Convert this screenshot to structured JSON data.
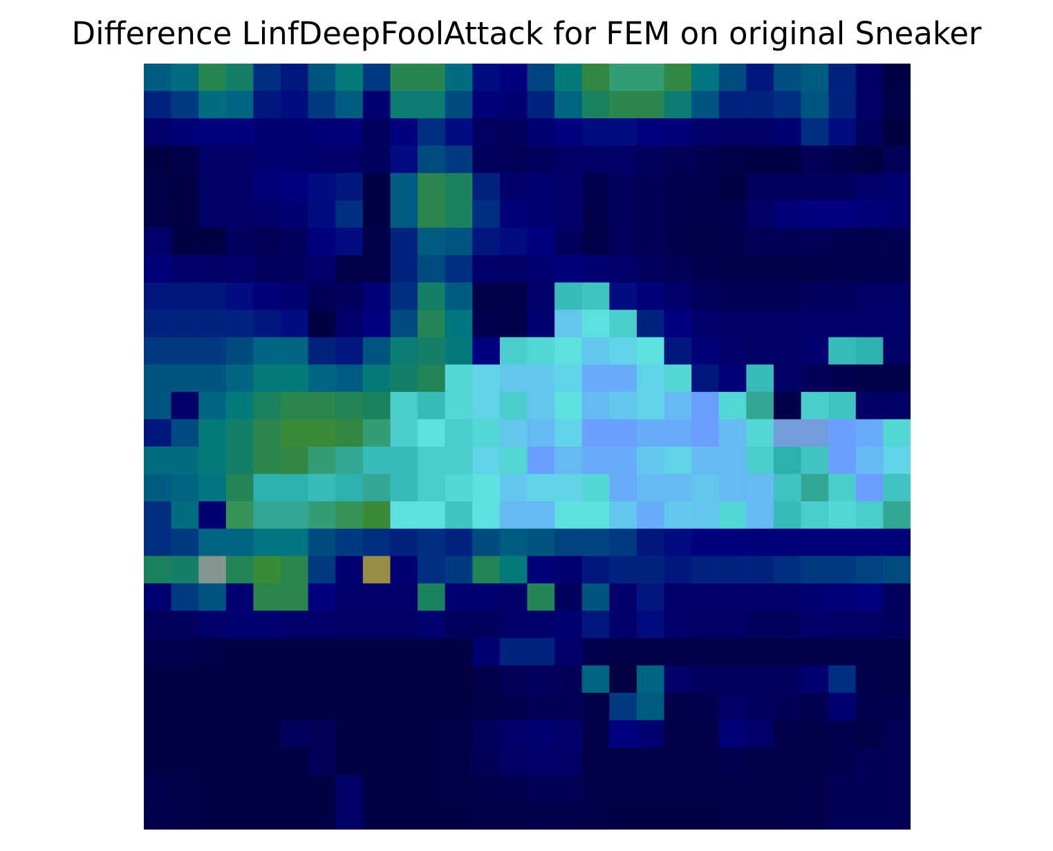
{
  "chart_data": {
    "type": "heatmap",
    "title": "Difference LinfDeepFoolAttack for FEM on original Sneaker",
    "rows": 28,
    "cols": 28,
    "axes_visible": false,
    "grid": false,
    "colorbar": false,
    "color_scale": [
      {
        "t": 0.0,
        "color": "#02003b"
      },
      {
        "t": 0.2,
        "color": "#000080"
      },
      {
        "t": 0.3,
        "color": "#003a80"
      },
      {
        "t": 0.45,
        "color": "#007a80"
      },
      {
        "t": 0.6,
        "color": "#3a8a3a"
      },
      {
        "t": 0.68,
        "color": "#2fb0b0"
      },
      {
        "t": 0.78,
        "color": "#5fe0e0"
      },
      {
        "t": 0.88,
        "color": "#6a9fff"
      },
      {
        "t": 1.0,
        "color": "#a08a20"
      }
    ],
    "z_note_range": [
      0,
      1
    ],
    "z": [
      [
        0.38,
        0.42,
        0.55,
        0.5,
        0.28,
        0.24,
        0.36,
        0.46,
        0.3,
        0.55,
        0.55,
        0.42,
        0.22,
        0.2,
        0.32,
        0.46,
        0.58,
        0.64,
        0.64,
        0.58,
        0.44,
        0.34,
        0.24,
        0.35,
        0.38,
        0.26,
        0.12,
        0.03
      ],
      [
        0.26,
        0.3,
        0.42,
        0.4,
        0.24,
        0.22,
        0.3,
        0.38,
        0.16,
        0.48,
        0.48,
        0.34,
        0.18,
        0.16,
        0.26,
        0.4,
        0.52,
        0.56,
        0.56,
        0.48,
        0.36,
        0.26,
        0.26,
        0.28,
        0.36,
        0.26,
        0.12,
        0.04
      ],
      [
        0.14,
        0.17,
        0.19,
        0.19,
        0.16,
        0.16,
        0.17,
        0.18,
        0.1,
        0.2,
        0.28,
        0.22,
        0.11,
        0.09,
        0.16,
        0.2,
        0.22,
        0.22,
        0.2,
        0.18,
        0.14,
        0.12,
        0.12,
        0.16,
        0.28,
        0.22,
        0.1,
        0.01
      ],
      [
        0.02,
        0.04,
        0.12,
        0.12,
        0.16,
        0.16,
        0.15,
        0.14,
        0.1,
        0.22,
        0.34,
        0.3,
        0.1,
        0.08,
        0.1,
        0.12,
        0.13,
        0.12,
        0.1,
        0.08,
        0.07,
        0.04,
        0.03,
        0.03,
        0.08,
        0.06,
        0.02,
        0.08
      ],
      [
        0.04,
        0.03,
        0.12,
        0.12,
        0.18,
        0.2,
        0.22,
        0.24,
        0.03,
        0.38,
        0.56,
        0.52,
        0.26,
        0.14,
        0.16,
        0.14,
        0.06,
        0.1,
        0.08,
        0.06,
        0.06,
        0.03,
        0.1,
        0.1,
        0.1,
        0.1,
        0.14,
        0.16
      ],
      [
        0.04,
        0.02,
        0.12,
        0.12,
        0.14,
        0.16,
        0.22,
        0.28,
        0.03,
        0.38,
        0.56,
        0.52,
        0.28,
        0.18,
        0.16,
        0.14,
        0.05,
        0.1,
        0.08,
        0.06,
        0.05,
        0.06,
        0.12,
        0.18,
        0.2,
        0.2,
        0.18,
        0.16
      ],
      [
        0.14,
        0.03,
        0.03,
        0.1,
        0.08,
        0.1,
        0.2,
        0.22,
        0.04,
        0.26,
        0.38,
        0.36,
        0.24,
        0.22,
        0.2,
        0.1,
        0.04,
        0.1,
        0.08,
        0.05,
        0.04,
        0.05,
        0.08,
        0.08,
        0.08,
        0.07,
        0.06,
        0.07
      ],
      [
        0.18,
        0.14,
        0.12,
        0.14,
        0.1,
        0.1,
        0.14,
        0.04,
        0.04,
        0.26,
        0.34,
        0.28,
        0.14,
        0.12,
        0.16,
        0.18,
        0.16,
        0.14,
        0.1,
        0.08,
        0.06,
        0.04,
        0.04,
        0.04,
        0.05,
        0.06,
        0.06,
        0.06
      ],
      [
        0.24,
        0.24,
        0.24,
        0.22,
        0.18,
        0.16,
        0.08,
        0.1,
        0.18,
        0.28,
        0.5,
        0.38,
        0.04,
        0.04,
        0.14,
        0.7,
        0.72,
        0.22,
        0.18,
        0.14,
        0.1,
        0.08,
        0.08,
        0.08,
        0.1,
        0.1,
        0.12,
        0.12
      ],
      [
        0.26,
        0.26,
        0.26,
        0.26,
        0.24,
        0.22,
        0.03,
        0.14,
        0.2,
        0.34,
        0.54,
        0.44,
        0.06,
        0.05,
        0.16,
        0.82,
        0.78,
        0.74,
        0.26,
        0.2,
        0.14,
        0.12,
        0.12,
        0.12,
        0.14,
        0.14,
        0.14,
        0.14
      ],
      [
        0.3,
        0.3,
        0.3,
        0.34,
        0.4,
        0.4,
        0.26,
        0.24,
        0.36,
        0.48,
        0.5,
        0.46,
        0.2,
        0.74,
        0.76,
        0.78,
        0.82,
        0.8,
        0.78,
        0.24,
        0.18,
        0.14,
        0.12,
        0.12,
        0.16,
        0.7,
        0.68,
        0.12
      ],
      [
        0.36,
        0.36,
        0.36,
        0.4,
        0.46,
        0.46,
        0.4,
        0.38,
        0.46,
        0.5,
        0.54,
        0.76,
        0.8,
        0.82,
        0.82,
        0.8,
        0.86,
        0.86,
        0.8,
        0.76,
        0.24,
        0.18,
        0.7,
        0.12,
        0.08,
        0.06,
        0.04,
        0.04
      ],
      [
        0.36,
        0.14,
        0.4,
        0.46,
        0.52,
        0.56,
        0.56,
        0.54,
        0.52,
        0.74,
        0.7,
        0.76,
        0.8,
        0.74,
        0.82,
        0.78,
        0.84,
        0.82,
        0.8,
        0.84,
        0.88,
        0.76,
        0.66,
        0.04,
        0.74,
        0.72,
        0.12,
        0.12
      ],
      [
        0.24,
        0.34,
        0.46,
        0.5,
        0.56,
        0.6,
        0.6,
        0.58,
        0.64,
        0.74,
        0.78,
        0.74,
        0.76,
        0.82,
        0.84,
        0.8,
        0.88,
        0.88,
        0.86,
        0.86,
        0.88,
        0.84,
        0.76,
        0.9,
        0.9,
        0.88,
        0.86,
        0.76
      ],
      [
        0.42,
        0.42,
        0.46,
        0.5,
        0.56,
        0.58,
        0.64,
        0.66,
        0.7,
        0.7,
        0.74,
        0.74,
        0.8,
        0.76,
        0.88,
        0.84,
        0.86,
        0.86,
        0.82,
        0.8,
        0.84,
        0.84,
        0.74,
        0.68,
        0.72,
        0.88,
        0.84,
        0.8
      ],
      [
        0.38,
        0.4,
        0.44,
        0.54,
        0.68,
        0.68,
        0.7,
        0.68,
        0.66,
        0.7,
        0.74,
        0.76,
        0.78,
        0.82,
        0.8,
        0.8,
        0.76,
        0.86,
        0.84,
        0.84,
        0.82,
        0.84,
        0.84,
        0.72,
        0.66,
        0.74,
        0.88,
        0.72
      ],
      [
        0.28,
        0.42,
        0.16,
        0.62,
        0.66,
        0.66,
        0.64,
        0.62,
        0.6,
        0.78,
        0.78,
        0.72,
        0.78,
        0.84,
        0.84,
        0.78,
        0.78,
        0.82,
        0.86,
        0.82,
        0.82,
        0.76,
        0.84,
        0.7,
        0.74,
        0.76,
        0.74,
        0.66
      ],
      [
        0.28,
        0.3,
        0.4,
        0.4,
        0.44,
        0.44,
        0.34,
        0.3,
        0.28,
        0.26,
        0.28,
        0.26,
        0.34,
        0.38,
        0.36,
        0.32,
        0.32,
        0.3,
        0.24,
        0.22,
        0.2,
        0.2,
        0.18,
        0.18,
        0.18,
        0.18,
        0.18,
        0.18
      ],
      [
        0.52,
        0.5,
        0.94,
        0.54,
        0.6,
        0.56,
        0.3,
        0.16,
        0.98,
        0.16,
        0.28,
        0.3,
        0.54,
        0.46,
        0.18,
        0.16,
        0.24,
        0.26,
        0.26,
        0.24,
        0.26,
        0.26,
        0.26,
        0.28,
        0.3,
        0.3,
        0.32,
        0.34
      ],
      [
        0.16,
        0.3,
        0.36,
        0.16,
        0.56,
        0.56,
        0.2,
        0.14,
        0.14,
        0.14,
        0.52,
        0.16,
        0.16,
        0.14,
        0.54,
        0.1,
        0.36,
        0.14,
        0.24,
        0.14,
        0.14,
        0.14,
        0.14,
        0.14,
        0.16,
        0.18,
        0.2,
        0.1
      ],
      [
        0.1,
        0.1,
        0.14,
        0.16,
        0.16,
        0.14,
        0.14,
        0.12,
        0.12,
        0.12,
        0.16,
        0.1,
        0.1,
        0.14,
        0.14,
        0.16,
        0.24,
        0.14,
        0.22,
        0.14,
        0.12,
        0.12,
        0.1,
        0.1,
        0.14,
        0.12,
        0.12,
        0.1
      ],
      [
        0.06,
        0.06,
        0.04,
        0.03,
        0.03,
        0.03,
        0.03,
        0.02,
        0.02,
        0.02,
        0.03,
        0.03,
        0.16,
        0.26,
        0.26,
        0.14,
        0.06,
        0.04,
        0.04,
        0.04,
        0.04,
        0.04,
        0.04,
        0.04,
        0.04,
        0.04,
        0.04,
        0.04
      ],
      [
        0.03,
        0.03,
        0.03,
        0.03,
        0.02,
        0.02,
        0.02,
        0.02,
        0.02,
        0.02,
        0.02,
        0.02,
        0.05,
        0.08,
        0.1,
        0.08,
        0.4,
        0.03,
        0.4,
        0.14,
        0.1,
        0.1,
        0.1,
        0.1,
        0.16,
        0.28,
        0.05,
        0.04
      ],
      [
        0.03,
        0.03,
        0.03,
        0.03,
        0.02,
        0.02,
        0.02,
        0.02,
        0.02,
        0.02,
        0.02,
        0.02,
        0.04,
        0.06,
        0.08,
        0.08,
        0.04,
        0.3,
        0.38,
        0.04,
        0.06,
        0.12,
        0.1,
        0.08,
        0.06,
        0.16,
        0.06,
        0.06
      ],
      [
        0.03,
        0.03,
        0.03,
        0.03,
        0.03,
        0.1,
        0.08,
        0.03,
        0.03,
        0.03,
        0.03,
        0.04,
        0.1,
        0.14,
        0.16,
        0.14,
        0.04,
        0.2,
        0.16,
        0.04,
        0.04,
        0.18,
        0.14,
        0.04,
        0.04,
        0.06,
        0.04,
        0.08
      ],
      [
        0.03,
        0.03,
        0.03,
        0.03,
        0.03,
        0.03,
        0.08,
        0.03,
        0.03,
        0.03,
        0.03,
        0.04,
        0.08,
        0.12,
        0.14,
        0.12,
        0.04,
        0.04,
        0.04,
        0.04,
        0.04,
        0.06,
        0.04,
        0.04,
        0.04,
        0.06,
        0.08,
        0.08
      ],
      [
        0.06,
        0.04,
        0.03,
        0.03,
        0.03,
        0.03,
        0.03,
        0.12,
        0.03,
        0.03,
        0.03,
        0.04,
        0.05,
        0.06,
        0.08,
        0.08,
        0.04,
        0.04,
        0.04,
        0.04,
        0.04,
        0.04,
        0.04,
        0.04,
        0.05,
        0.08,
        0.08,
        0.08
      ],
      [
        0.05,
        0.04,
        0.03,
        0.03,
        0.03,
        0.03,
        0.03,
        0.12,
        0.03,
        0.03,
        0.03,
        0.03,
        0.04,
        0.04,
        0.05,
        0.05,
        0.04,
        0.03,
        0.03,
        0.03,
        0.03,
        0.04,
        0.04,
        0.04,
        0.05,
        0.08,
        0.08,
        0.08
      ]
    ]
  }
}
